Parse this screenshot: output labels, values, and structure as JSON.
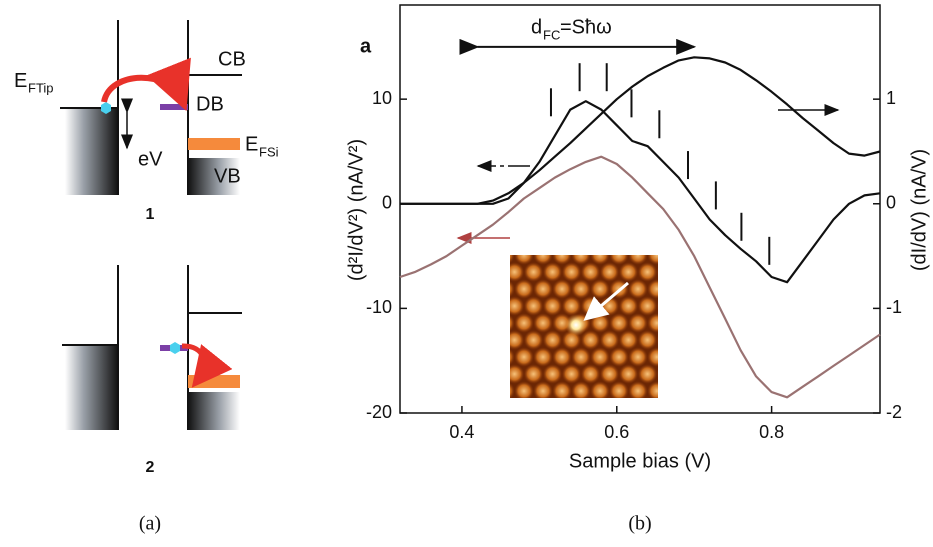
{
  "panel_a": {
    "e_ftip": "E",
    "e_ftip_sub": "FTip",
    "cb": "CB",
    "db": "DB",
    "e_fsi": "E",
    "e_fsi_sub": "FSi",
    "vb": "VB",
    "ev": "eV",
    "step_1": "1",
    "step_2": "2",
    "caption": "(a)"
  },
  "panel_b_caption": "(b)",
  "chart_data": {
    "type": "line",
    "panel_label": "a",
    "annotation": {
      "d": "d",
      "sub": "FC",
      "rest": "=Sħω"
    },
    "x_label": "Sample bias (V)",
    "y_label": "(d²I/dV²) (nA/V²)",
    "y2_label": "(dI/dV) (nA/V)",
    "x": [
      0.32,
      0.34,
      0.36,
      0.38,
      0.4,
      0.42,
      0.44,
      0.46,
      0.48,
      0.5,
      0.52,
      0.54,
      0.56,
      0.58,
      0.6,
      0.62,
      0.64,
      0.66,
      0.68,
      0.7,
      0.72,
      0.74,
      0.76,
      0.78,
      0.8,
      0.82,
      0.84,
      0.86,
      0.88,
      0.9,
      0.92,
      0.94
    ],
    "series": [
      {
        "color": "#111111",
        "axis": "y2",
        "values": [
          0,
          0,
          0,
          0,
          0,
          0,
          0.03,
          0.1,
          0.2,
          0.32,
          0.45,
          0.58,
          0.72,
          0.86,
          1.0,
          1.12,
          1.22,
          1.3,
          1.37,
          1.4,
          1.39,
          1.35,
          1.28,
          1.18,
          1.07,
          0.95,
          0.82,
          0.7,
          0.58,
          0.48,
          0.46,
          0.5
        ]
      },
      {
        "color": "#111111",
        "values": [
          0,
          0,
          0,
          0,
          0,
          0,
          0,
          0.5,
          2,
          4,
          6.5,
          9,
          9.8,
          9,
          7.5,
          6,
          5.5,
          4,
          2.5,
          0.5,
          -1.5,
          -3,
          -4.3,
          -5.5,
          -7,
          -7.5,
          -5.5,
          -3.5,
          -1.5,
          0,
          0.8,
          1
        ]
      },
      {
        "color": "#9a7272",
        "values": [
          -7,
          -6.5,
          -5.8,
          -5,
          -4,
          -3,
          -2,
          -0.8,
          0.5,
          1.5,
          2.5,
          3.3,
          4,
          4.5,
          3.8,
          2.5,
          1,
          -0.5,
          -2.5,
          -5,
          -8,
          -11,
          -14,
          -16.5,
          -18,
          -18.5,
          -17.5,
          -16.5,
          -15.5,
          -14.5,
          -13.5,
          -12.5
        ]
      }
    ],
    "markers": {
      "x": [
        0.515,
        0.552,
        0.587,
        0.619,
        0.655,
        0.692,
        0.728,
        0.761,
        0.797
      ],
      "y": [
        9.7,
        12.1,
        12.1,
        9.6,
        7.6,
        3.7,
        0.8,
        -2.2,
        -4.5
      ]
    },
    "fc_arrow": {
      "x": [
        0.42,
        0.7
      ],
      "y": 15
    },
    "xlim": [
      0.32,
      0.94
    ],
    "xticks": [
      0.4,
      0.6,
      0.8
    ],
    "ylim": [
      -20,
      19
    ],
    "yticks": [
      -20,
      -10,
      0,
      10
    ],
    "y2lim": [
      -2,
      1.9
    ],
    "y2ticks": [
      -2,
      -1,
      0,
      1
    ]
  }
}
